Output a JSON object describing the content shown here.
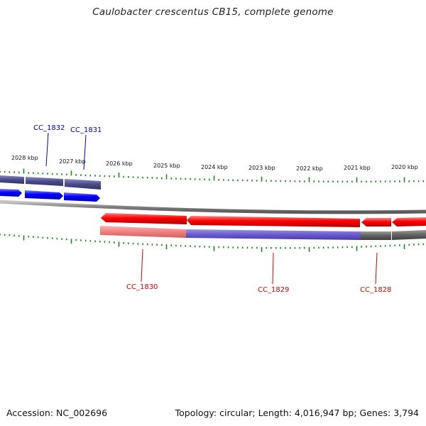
{
  "title": "Caulobacter crescentus CB15, complete genome",
  "footer": {
    "accession": "Accession: NC_002696",
    "summary": "Topology: circular; Length: 4,016,947 bp; Genes: 3,794"
  },
  "scale_labels": [
    "2028 kbp",
    "2027 kbp",
    "2026 kbp",
    "2025 kbp",
    "2024 kbp",
    "2023 kbp",
    "2022 kbp",
    "2021 kbp",
    "2020 kbp"
  ],
  "gene_labels": [
    {
      "name": "CC_1832",
      "strand": "forward",
      "color": "#0000cc"
    },
    {
      "name": "CC_1831",
      "strand": "forward",
      "color": "#0000cc"
    },
    {
      "name": "CC_1830",
      "strand": "reverse",
      "color": "#dd0000"
    },
    {
      "name": "CC_1829",
      "strand": "reverse",
      "color": "#dd0000"
    },
    {
      "name": "CC_1828",
      "strand": "reverse",
      "color": "#dd0000"
    }
  ],
  "colors": {
    "forward_gene": "#0000ff",
    "reverse_gene": "#ff0000",
    "forward_track": "#4b4a8a",
    "reverse_track_pink": "#f08080",
    "reverse_track_purple": "#6a5acd",
    "reverse_track_gray": "#606060",
    "backbone": "#808080",
    "tick": "#1a8a1a"
  }
}
